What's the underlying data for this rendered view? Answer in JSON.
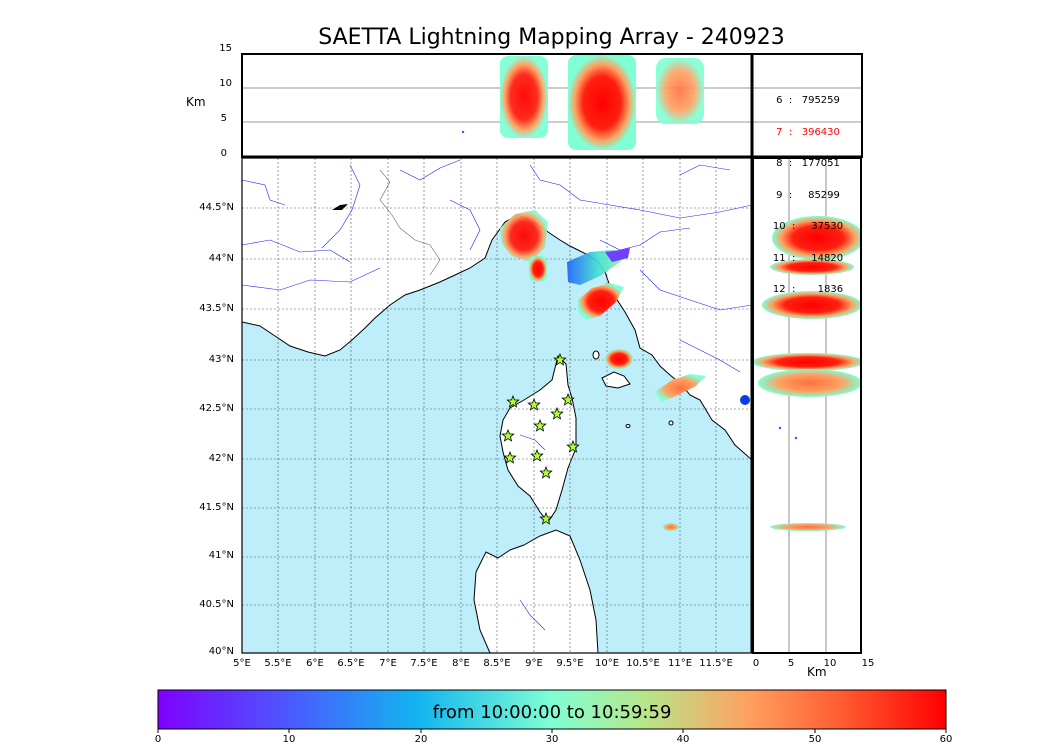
{
  "title": "SAETTA Lightning Mapping Array - 240923",
  "top_panel": {
    "y_axis_label": "Km",
    "y_ticks": [
      "15",
      "10",
      "5",
      "0"
    ]
  },
  "side_panel": {
    "x_axis_label": "Km",
    "x_ticks": [
      "0",
      "5",
      "10",
      "15"
    ]
  },
  "map": {
    "lat_labels": [
      "44.5°N",
      "44°N",
      "43.5°N",
      "43°N",
      "42.5°N",
      "42°N",
      "41.5°N",
      "41°N",
      "40.5°N",
      "40°N"
    ],
    "lon_labels": [
      "5°E",
      "5.5°E",
      "6°E",
      "6.5°E",
      "7°E",
      "7.5°E",
      "8°E",
      "8.5°E",
      "9°E",
      "9.5°E",
      "10°E",
      "10.5°E",
      "11°E",
      "11.5°E"
    ],
    "sea_color": "#bdeefa",
    "station_marker": "star-icon",
    "station_color": "#adff2f"
  },
  "station_stats": [
    {
      "label": "6  :   795259",
      "color": "#000000"
    },
    {
      "label": "7  :   396430",
      "color": "#ff0000"
    },
    {
      "label": "8  :   177051",
      "color": "#000000"
    },
    {
      "label": "9  :     85299",
      "color": "#000000"
    },
    {
      "label": "10  :     37530",
      "color": "#000000"
    },
    {
      "label": "11  :     14820",
      "color": "#000000"
    },
    {
      "label": "12  :       1836",
      "color": "#000000"
    }
  ],
  "colorbar": {
    "text": "from 10:00:00 to 10:59:59",
    "ticks": [
      "0",
      "10",
      "20",
      "30",
      "40",
      "50",
      "60"
    ],
    "range": [
      0,
      60
    ],
    "colormap": "rainbow"
  }
}
